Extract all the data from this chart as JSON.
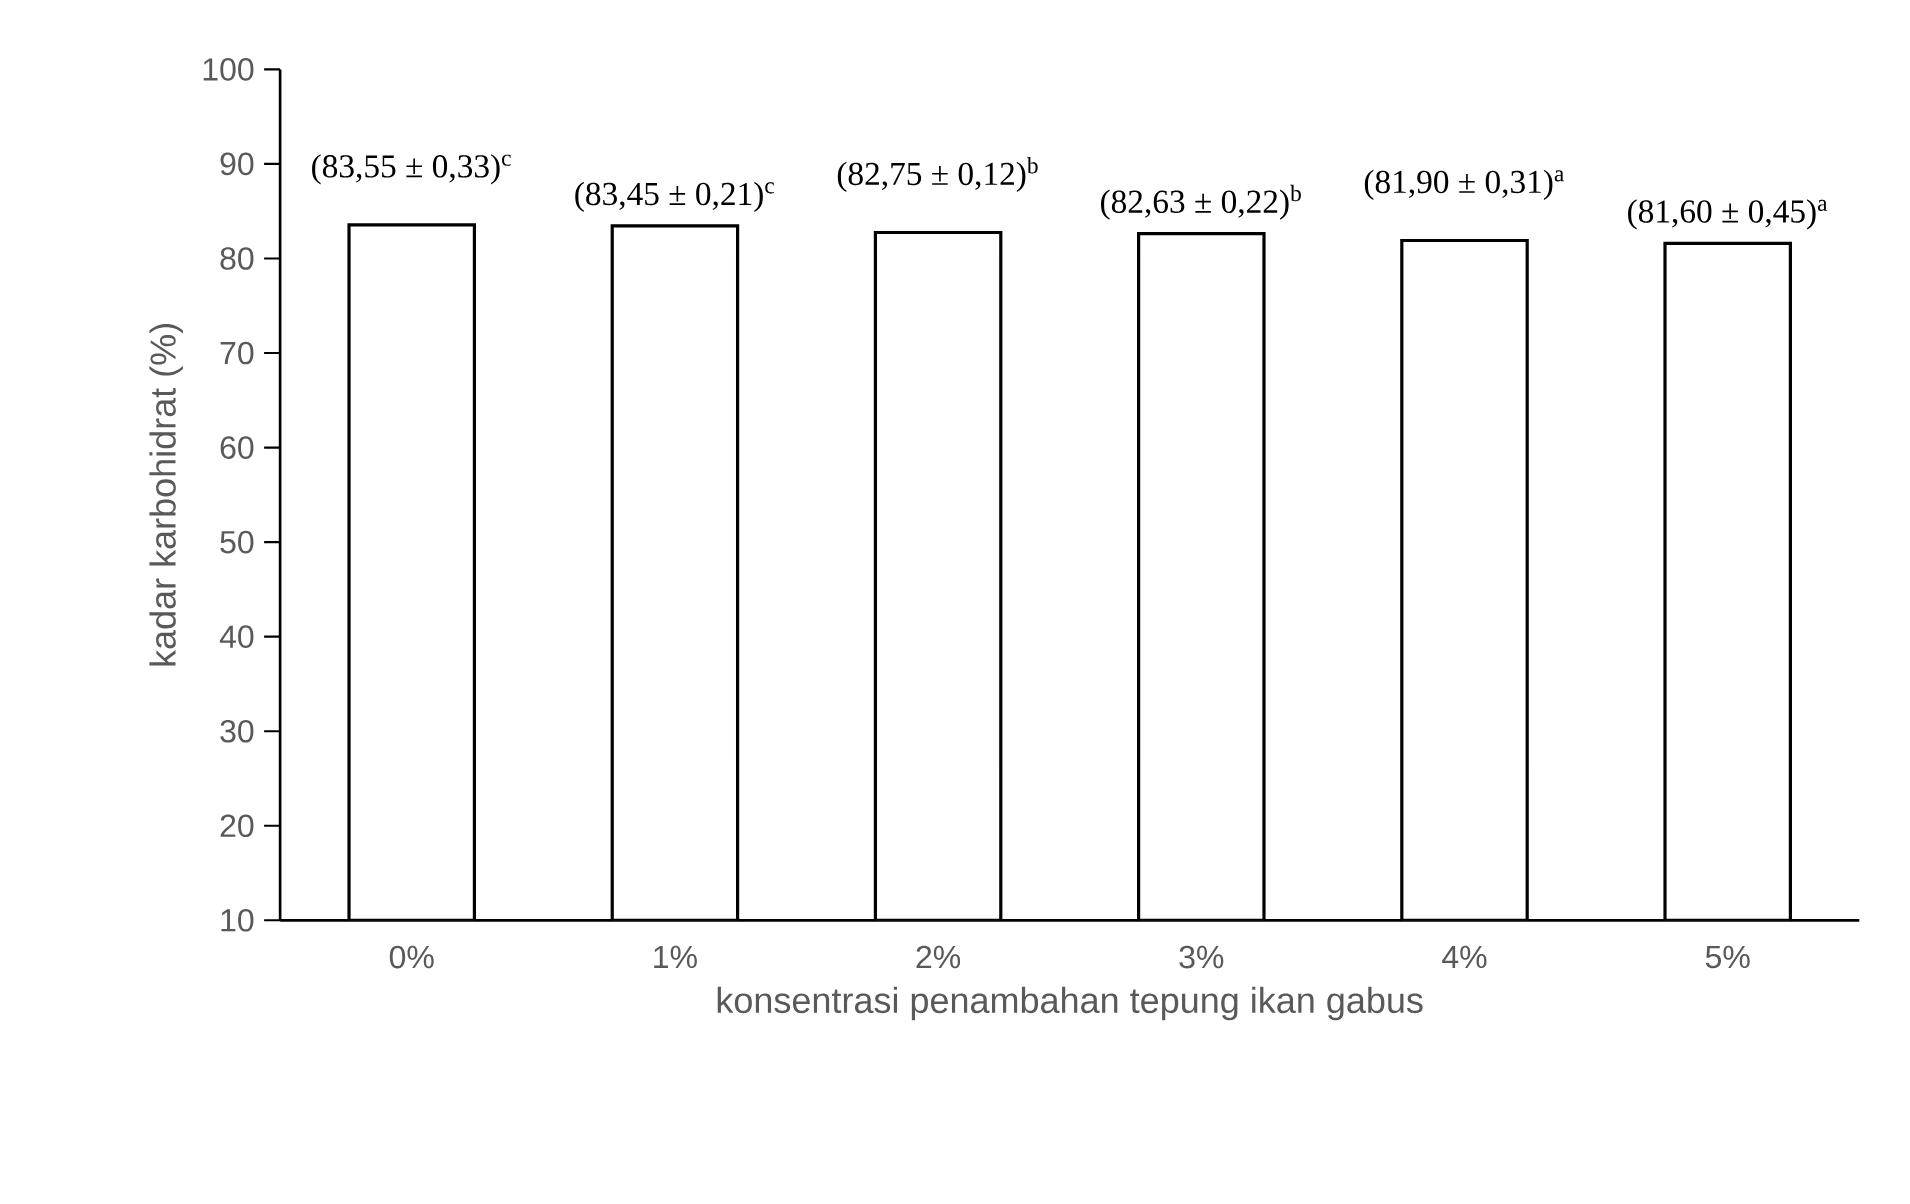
{
  "chart_data": {
    "type": "bar",
    "xlabel": "konsentrasi penambahan tepung ikan gabus",
    "ylabel": "kadar karbohidrat (%)",
    "categories": [
      "0%",
      "1%",
      "2%",
      "3%",
      "4%",
      "5%"
    ],
    "values": [
      83.55,
      83.45,
      82.75,
      82.63,
      81.9,
      81.6
    ],
    "value_labels": [
      "(83,55 ± 0,33)$^{c}$",
      "(83,45 ± 0,21)$^{c}$",
      "(82,75 ± 0,12)$^{b}$",
      "(82,63 ± 0,22)$^{b}$",
      "(81,90 ± 0,31)$^{a}$",
      "(81,60 ± 0,45)$^{a}$"
    ],
    "color": "#ffffff",
    "ylim": [
      10,
      100
    ],
    "yticks": [
      10,
      20,
      30,
      40,
      50,
      60,
      70,
      80,
      90,
      100
    ],
    "grid": false
  }
}
